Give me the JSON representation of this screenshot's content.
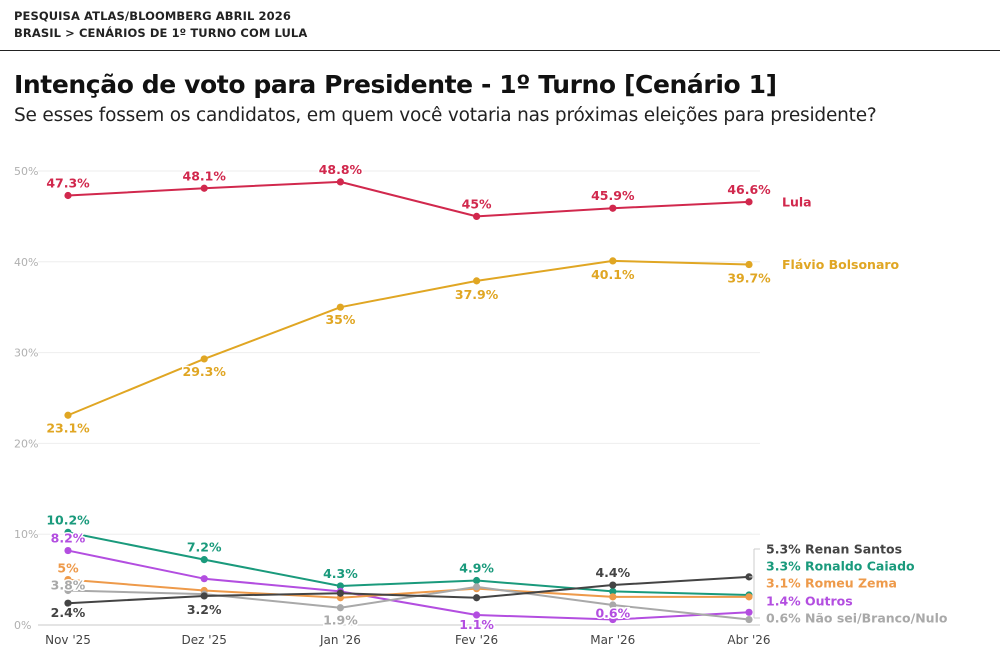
{
  "header": {
    "source_line": "PESQUISA ATLAS/BLOOMBERG ABRIL 2026",
    "breadcrumb": "BRASIL > CENÁRIOS DE 1º TURNO COM LULA"
  },
  "chart_data": {
    "type": "line",
    "title": "Intenção de voto para Presidente - 1º Turno [Cenário 1]",
    "subtitle": "Se esses fossem os candidatos, em quem você votaria nas próximas eleições para presidente?",
    "categories": [
      "Nov '25",
      "Dez '25",
      "Jan '26",
      "Fev '26",
      "Mar '26",
      "Abr '26"
    ],
    "ylim": [
      0,
      50
    ],
    "yticks": [
      "0%",
      "10%",
      "20%",
      "30%",
      "40%",
      "50%"
    ],
    "grid": true,
    "series": [
      {
        "name": "Lula",
        "color": "#d1284d",
        "values": [
          47.3,
          48.1,
          48.8,
          45,
          45.9,
          46.6
        ],
        "labels": [
          "47.3%",
          "48.1%",
          "48.8%",
          "45%",
          "45.9%",
          "46.6%"
        ],
        "end_label": "Lula"
      },
      {
        "name": "Flávio Bolsonaro",
        "color": "#e0a623",
        "values": [
          23.1,
          29.3,
          35,
          37.9,
          40.1,
          39.7
        ],
        "labels": [
          "23.1%",
          "29.3%",
          "35%",
          "37.9%",
          "40.1%",
          "39.7%"
        ],
        "end_label": "Flávio Bolsonaro"
      },
      {
        "name": "Ronaldo Caiado",
        "color": "#1a9a7c",
        "values": [
          10.2,
          7.2,
          4.3,
          4.9,
          3.7,
          3.3
        ],
        "labels": [
          "10.2%",
          "7.2%",
          "4.3%",
          "4.9%",
          "",
          ""
        ],
        "end_label": "3.3% Ronaldo Caiado"
      },
      {
        "name": "Outros",
        "color": "#b34ee0",
        "values": [
          8.2,
          5.1,
          3.7,
          1.1,
          0.6,
          1.4
        ],
        "labels": [
          "8.2%",
          "",
          "",
          "1.1%",
          "0.6%",
          ""
        ],
        "end_label": "1.4% Outros"
      },
      {
        "name": "Romeu Zema",
        "color": "#ee9a4a",
        "values": [
          5,
          3.8,
          3.0,
          4.0,
          3.1,
          3.1
        ],
        "labels": [
          "5%",
          "",
          "",
          "",
          "",
          ""
        ],
        "end_label": "3.1% Romeu Zema"
      },
      {
        "name": "Não sei/Branco/Nulo",
        "color": "#a9a9a9",
        "values": [
          3.8,
          3.4,
          1.9,
          4.2,
          2.2,
          0.6
        ],
        "labels": [
          "3.8%",
          "",
          "1.9%",
          "",
          "",
          ""
        ],
        "end_label": "0.6% Não sei/Branco/Nulo"
      },
      {
        "name": "Renan Santos",
        "color": "#444444",
        "values": [
          2.4,
          3.2,
          3.5,
          3.0,
          4.4,
          5.3
        ],
        "labels": [
          "2.4%",
          "3.2%",
          "",
          "",
          "4.4%",
          ""
        ],
        "end_label": "5.3% Renan Santos"
      }
    ]
  }
}
